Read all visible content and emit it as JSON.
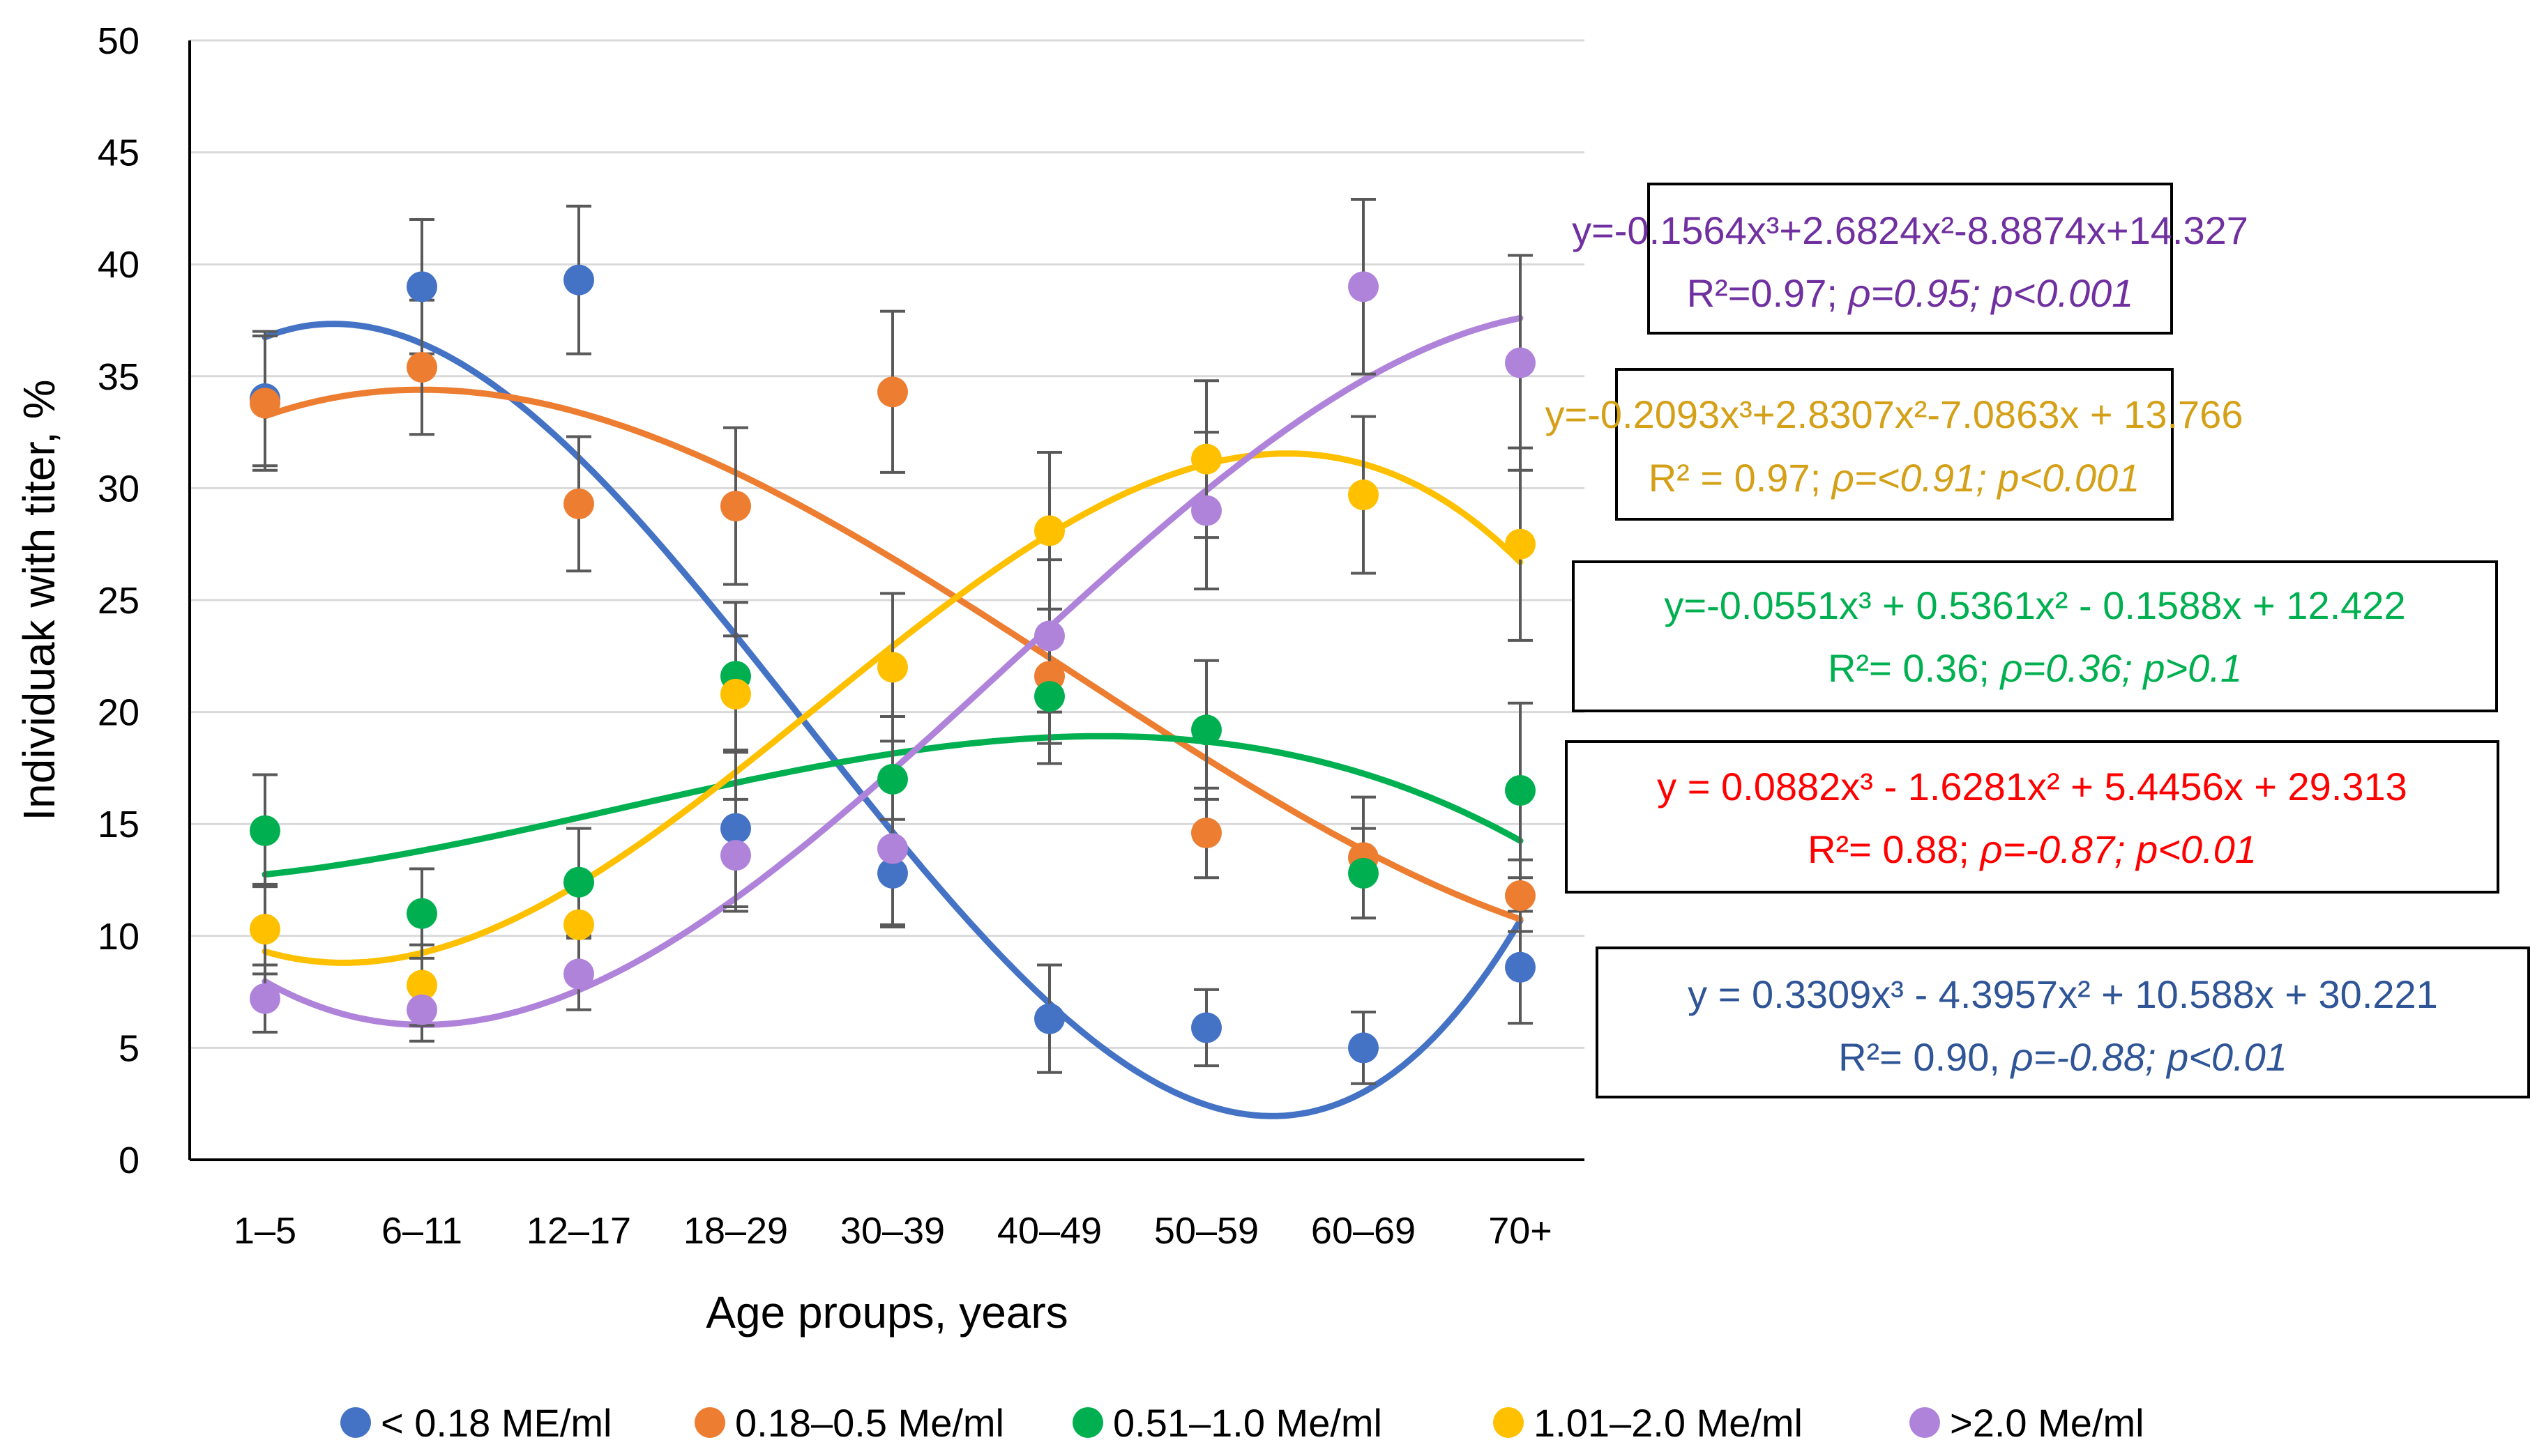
{
  "chart_data": {
    "type": "scatter",
    "xlabel": "Age proups, years",
    "ylabel": "Individuak with titer, %",
    "ylim": [
      0,
      50
    ],
    "yticks": [
      0,
      5,
      10,
      15,
      20,
      25,
      30,
      35,
      40,
      45,
      50
    ],
    "grid": "horizontal",
    "legend_position": "bottom",
    "categories": [
      "1–5",
      "6–11",
      "12–17",
      "18–29",
      "30–39",
      "40–49",
      "50–59",
      "60–69",
      "70+"
    ],
    "series": [
      {
        "name": "< 0.18 ME/ml",
        "color": "#4472C4",
        "values": [
          34.0,
          39.0,
          39.3,
          14.8,
          12.8,
          6.3,
          5.9,
          5.0,
          8.6
        ],
        "errors": [
          3.0,
          3.0,
          3.3,
          3.5,
          2.4,
          2.4,
          1.7,
          1.6,
          2.5
        ],
        "trend": [
          30.221,
          10.588,
          -4.3957,
          0.3309
        ],
        "equation": "y = 0.3309x³ - 4.3957x² + 10.588x + 30.221",
        "stats_pre": "R²= 0.90, ",
        "stats_italic": "ρ=-0.88; p<0.01"
      },
      {
        "name": "0.18–0.5 Me/ml",
        "color": "#ED7D31",
        "values": [
          33.8,
          35.4,
          29.3,
          29.2,
          34.3,
          21.6,
          14.6,
          13.5,
          11.8
        ],
        "errors": [
          3.0,
          3.0,
          3.0,
          3.5,
          3.6,
          3.0,
          2.0,
          2.7,
          1.6
        ],
        "trend": [
          29.313,
          5.4456,
          -1.6281,
          0.0882
        ],
        "equation": "y = 0.0882x³ - 1.6281x² + 5.4456x + 29.313",
        "stats_pre": "R²= 0.88; ",
        "stats_italic": "ρ=-0.87; p<0.01"
      },
      {
        "name": "0.51–1.0 Me/ml",
        "color": "#00B050",
        "values": [
          14.7,
          11.0,
          12.4,
          21.6,
          17.0,
          20.7,
          19.2,
          12.8,
          16.5
        ],
        "errors": [
          2.5,
          2.0,
          2.4,
          3.3,
          2.8,
          3.0,
          3.1,
          2.0,
          3.9
        ],
        "trend": [
          12.422,
          -0.1588,
          0.5361,
          -0.0551
        ],
        "equation": "y=-0.0551x³ + 0.5361x² - 0.1588x + 12.422",
        "stats_pre": "R²= 0.36; ",
        "stats_italic": "ρ=0.36; p>0.1"
      },
      {
        "name": "1.01–2.0 Me/ml",
        "color": "#FFC000",
        "values": [
          10.3,
          7.8,
          10.5,
          20.8,
          22.0,
          28.1,
          31.3,
          29.7,
          27.5
        ],
        "errors": [
          2.0,
          1.8,
          2.0,
          2.6,
          3.3,
          3.5,
          3.5,
          3.5,
          4.3
        ],
        "trend": [
          13.766,
          -7.0863,
          2.8307,
          -0.2093
        ],
        "equation": "y=-0.2093x³+2.8307x²-7.0863x + 13.766",
        "stats_pre": "R² = 0.97; ",
        "stats_italic": "ρ=<0.91; p<0.001"
      },
      {
        "name": ">2.0 Me/ml",
        "color": "#B083DB",
        "values": [
          7.2,
          6.7,
          8.3,
          13.6,
          13.9,
          23.4,
          29.0,
          39.0,
          35.6
        ],
        "errors": [
          1.5,
          1.4,
          1.6,
          2.5,
          3.4,
          3.4,
          3.5,
          3.9,
          4.8
        ],
        "trend": [
          14.327,
          -8.8874,
          2.6824,
          -0.1564
        ],
        "equation": "y=-0.1564x³+2.6824x²-8.8874x+14.327",
        "stats_pre": "R²=0.97; ",
        "stats_italic": "ρ=0.95; p<0.001"
      }
    ]
  },
  "colors": {
    "error_bar": "#595959",
    "grid": "#D9D9D9",
    "eq_purple": "#7030A0",
    "eq_gold": "#D4A017",
    "eq_green": "#00B050",
    "eq_red": "#FF0000",
    "eq_blue": "#2F5597"
  }
}
